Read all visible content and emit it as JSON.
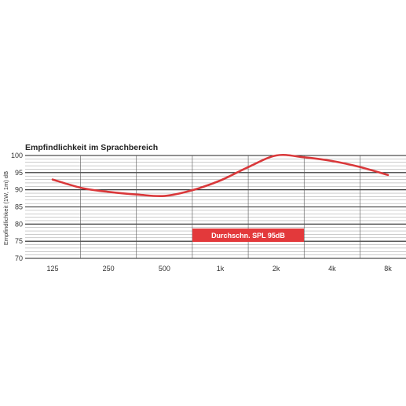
{
  "chart_data": {
    "type": "line",
    "title": "Empfindlichkeit im Sprachbereich",
    "ylabel": "Empfindlichkeit (1W, 1m) dB",
    "xlabel": "",
    "categories": [
      "125",
      "250",
      "500",
      "1k",
      "2k",
      "4k",
      "8k"
    ],
    "yticks": [
      70,
      75,
      80,
      85,
      90,
      95,
      100
    ],
    "ylim": [
      70,
      100
    ],
    "grid": true,
    "series": [
      {
        "color": "#d9383a",
        "points": [
          {
            "x": 125,
            "y": 93.0
          },
          {
            "x": 180,
            "y": 90.5
          },
          {
            "x": 250,
            "y": 89.4
          },
          {
            "x": 360,
            "y": 88.6
          },
          {
            "x": 500,
            "y": 88.2
          },
          {
            "x": 700,
            "y": 89.8
          },
          {
            "x": 1000,
            "y": 92.7
          },
          {
            "x": 1400,
            "y": 96.5
          },
          {
            "x": 2000,
            "y": 100.0
          },
          {
            "x": 2800,
            "y": 99.5
          },
          {
            "x": 4000,
            "y": 98.4
          },
          {
            "x": 5600,
            "y": 96.7
          },
          {
            "x": 8000,
            "y": 94.3
          }
        ]
      }
    ],
    "annotation": "Durchschn. SPL 95dB",
    "annotation_color": "#e3393b"
  }
}
